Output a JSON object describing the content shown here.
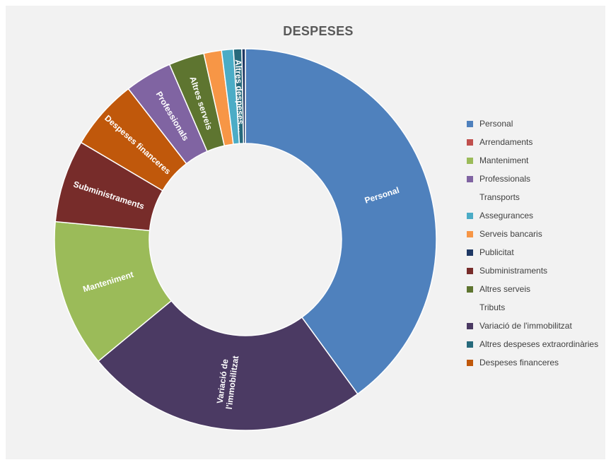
{
  "chart_data": {
    "type": "pie",
    "variant": "doughnut",
    "title": "DESPESES",
    "legend_position": "right",
    "units": "percent of total (estimated)",
    "series": [
      {
        "name": "Personal",
        "value": 40.0,
        "color": "#4f81bd",
        "label": "Personal"
      },
      {
        "name": "Arrendaments",
        "value": 0,
        "color": "#c0504d",
        "label": ""
      },
      {
        "name": "Manteniment",
        "value": 12.5,
        "color": "#9bbb59",
        "label": "Manteniment"
      },
      {
        "name": "Professionals",
        "value": 4.0,
        "color": "#8064a2",
        "label": "Professionals"
      },
      {
        "name": "Transports",
        "value": 0,
        "color": null,
        "label": ""
      },
      {
        "name": "Assegurances",
        "value": 1.0,
        "color": "#4bacc6",
        "label": ""
      },
      {
        "name": "Serveis bancaris",
        "value": 1.5,
        "color": "#f79646",
        "label": ""
      },
      {
        "name": "Publicitat",
        "value": 0.3,
        "color": "#1f3864",
        "label": ""
      },
      {
        "name": "Subministraments",
        "value": 7.0,
        "color": "#772c2a",
        "label": "Subministraments"
      },
      {
        "name": "Altres serveis",
        "value": 3.0,
        "color": "#5e7530",
        "label": "Altres serveis"
      },
      {
        "name": "Tributs",
        "value": 0,
        "color": null,
        "label": ""
      },
      {
        "name": "Variació de l'immobilitzat",
        "value": 24.0,
        "color": "#4b3a63",
        "label": "Variació de\nl'immobilitzat"
      },
      {
        "name": "Altres despeses extraordinàries",
        "value": 0.7,
        "color": "#276a7c",
        "label": "Altres despeses…"
      },
      {
        "name": "Despeses financeres",
        "value": 6.0,
        "color": "#c0580b",
        "label": "Despeses financeres"
      }
    ],
    "draw_order": [
      "Personal",
      "Variació de l'immobilitzat",
      "Manteniment",
      "Subministraments",
      "Despeses financeres",
      "Professionals",
      "Altres serveis",
      "Serveis bancaris",
      "Assegurances",
      "Altres despeses extraordinàries",
      "Publicitat"
    ]
  }
}
